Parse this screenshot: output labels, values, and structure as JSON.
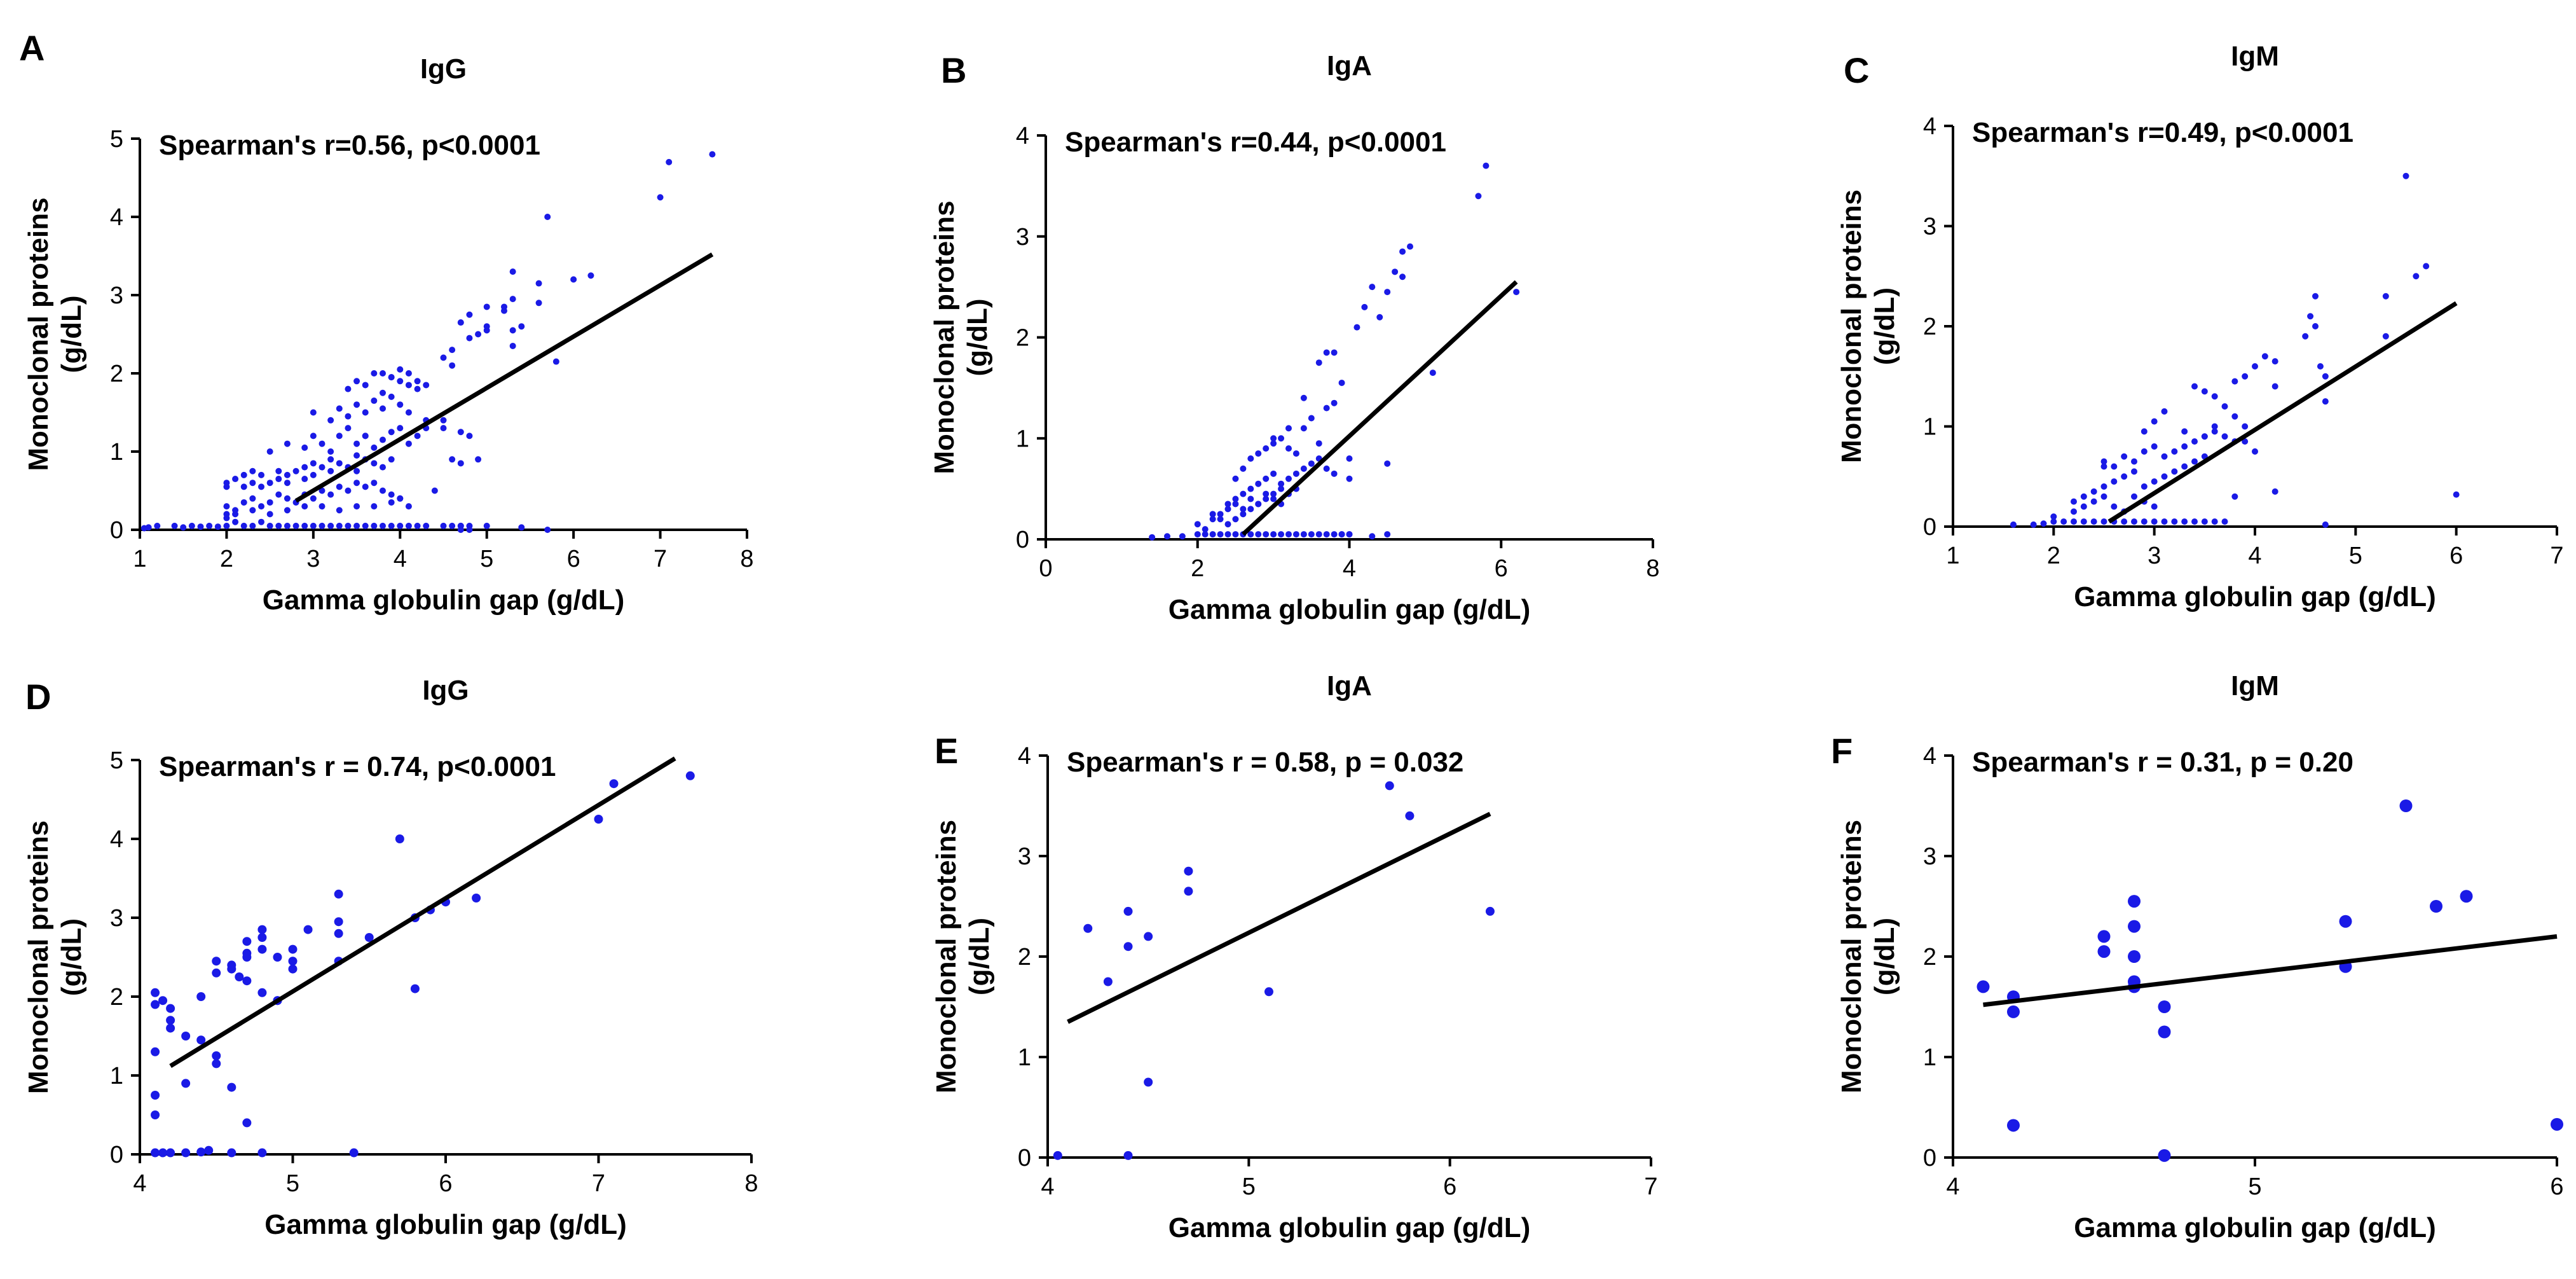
{
  "chart_data": [
    {
      "panel": "A",
      "type": "scatter",
      "title": "IgG",
      "annotation": "Spearman's  r=0.56, p<0.0001",
      "xlabel": "Gamma globulin gap (g/dL)",
      "ylabel": "Monoclonal proteins\n(g/dL)",
      "xlim": [
        1,
        8
      ],
      "ylim": [
        0,
        5
      ],
      "xticks": [
        1,
        2,
        3,
        4,
        5,
        6,
        7,
        8
      ],
      "yticks": [
        0,
        1,
        2,
        3,
        4,
        5
      ],
      "regression": [
        [
          2.8,
          0.37
        ],
        [
          7.6,
          3.52
        ]
      ],
      "x": [
        1.05,
        1.1,
        1.2,
        1.4,
        1.5,
        1.6,
        1.7,
        1.8,
        1.9,
        2.0,
        2.0,
        2.0,
        2.1,
        2.1,
        2.2,
        2.2,
        2.3,
        2.3,
        2.4,
        2.4,
        2.5,
        2.5,
        2.6,
        2.6,
        2.7,
        2.7,
        2.8,
        2.8,
        2.9,
        2.9,
        3.0,
        3.0,
        3.1,
        3.1,
        3.2,
        3.2,
        3.3,
        3.3,
        3.4,
        3.4,
        3.5,
        3.5,
        3.6,
        3.6,
        3.7,
        3.7,
        3.8,
        3.8,
        3.9,
        3.9,
        4.0,
        4.0,
        4.1,
        4.2,
        4.3,
        4.5,
        4.6,
        4.7,
        4.8,
        5.0,
        5.4,
        2.0,
        2.0,
        2.1,
        2.2,
        2.2,
        2.3,
        2.3,
        2.4,
        2.4,
        2.5,
        2.6,
        2.6,
        2.7,
        2.7,
        2.8,
        2.9,
        2.9,
        3.0,
        3.0,
        3.1,
        3.2,
        3.2,
        3.3,
        3.4,
        3.5,
        3.5,
        3.6,
        3.7,
        3.8,
        3.9,
        2.0,
        2.1,
        2.3,
        2.5,
        2.7,
        2.9,
        3.1,
        3.3,
        3.5,
        3.7,
        3.9,
        4.1,
        2.5,
        2.7,
        2.9,
        3.0,
        3.1,
        3.2,
        3.3,
        3.4,
        3.5,
        3.6,
        3.7,
        3.8,
        3.9,
        4.0,
        4.1,
        4.2,
        4.3,
        4.5,
        3.0,
        3.2,
        3.3,
        3.4,
        3.5,
        3.6,
        3.7,
        3.8,
        3.9,
        4.0,
        4.1,
        4.3,
        4.5,
        3.4,
        3.5,
        3.6,
        3.7,
        3.8,
        3.9,
        4.0,
        4.1,
        4.2,
        4.3,
        3.8,
        3.9,
        4.0,
        4.1,
        4.2,
        3.6,
        4.0,
        4.4,
        4.6,
        4.7,
        4.7,
        4.8,
        4.9,
        4.5,
        4.6,
        4.8,
        4.9,
        5.0,
        4.6,
        4.7,
        4.8,
        5.0,
        5.3,
        5.3,
        5.3,
        5.0,
        5.2,
        5.4,
        5.6,
        5.2,
        5.6,
        6.0,
        6.2,
        5.3,
        5.8,
        5.7,
        7.0,
        7.1,
        7.6,
        4.8,
        4.7,
        4.7,
        5.7
      ],
      "y": [
        0.02,
        0.03,
        0.05,
        0.05,
        0.03,
        0.05,
        0.04,
        0.05,
        0.04,
        0.05,
        0.3,
        0.15,
        0.1,
        0.25,
        0.05,
        0.35,
        0.05,
        0.4,
        0.1,
        0.3,
        0.05,
        0.35,
        0.05,
        0.45,
        0.05,
        0.4,
        0.05,
        0.35,
        0.05,
        0.45,
        0.05,
        0.4,
        0.05,
        0.5,
        0.05,
        0.45,
        0.05,
        0.55,
        0.05,
        0.5,
        0.05,
        0.6,
        0.05,
        0.55,
        0.05,
        0.6,
        0.05,
        0.5,
        0.05,
        0.45,
        0.05,
        0.4,
        0.05,
        0.05,
        0.05,
        0.05,
        0.05,
        0.05,
        0.05,
        0.05,
        0.03,
        0.55,
        0.6,
        0.65,
        0.55,
        0.7,
        0.6,
        0.75,
        0.55,
        0.7,
        0.6,
        0.65,
        0.75,
        0.6,
        0.7,
        0.75,
        0.65,
        0.8,
        0.7,
        0.85,
        0.8,
        0.75,
        0.9,
        0.85,
        0.8,
        0.75,
        0.95,
        0.9,
        0.85,
        0.8,
        0.9,
        0.2,
        0.2,
        0.25,
        0.2,
        0.25,
        0.3,
        0.3,
        0.25,
        0.3,
        0.3,
        0.35,
        0.3,
        1.0,
        1.1,
        1.05,
        1.2,
        1.1,
        1.0,
        1.2,
        1.3,
        1.1,
        1.2,
        1.05,
        1.15,
        1.25,
        1.3,
        1.1,
        1.2,
        1.3,
        1.4,
        1.5,
        1.4,
        1.55,
        1.45,
        1.6,
        1.5,
        1.65,
        1.55,
        1.7,
        1.6,
        1.5,
        1.4,
        1.3,
        1.8,
        1.9,
        1.85,
        2.0,
        1.75,
        1.95,
        1.9,
        2.0,
        1.8,
        1.85,
        2.0,
        1.95,
        2.05,
        1.85,
        1.9,
        1.2,
        0.4,
        0.5,
        0.9,
        0.85,
        1.25,
        1.2,
        0.9,
        2.2,
        2.3,
        2.45,
        2.5,
        2.55,
        2.1,
        2.65,
        2.75,
        2.85,
        2.95,
        2.35,
        3.3,
        2.6,
        2.8,
        2.6,
        3.15,
        2.85,
        2.9,
        3.2,
        3.25,
        2.55,
        2.15,
        4.0,
        4.25,
        4.7,
        4.8,
        0.0,
        0.05,
        0.0,
        0.0
      ]
    },
    {
      "panel": "B",
      "type": "scatter",
      "title": "IgA",
      "annotation": "Spearman's  r=0.44, p<0.0001",
      "xlabel": "Gamma globulin gap (g/dL)",
      "ylabel": "Monoclonal proteins\n(g/dL)",
      "xlim": [
        0,
        8
      ],
      "ylim": [
        0,
        4
      ],
      "xticks": [
        0,
        2,
        4,
        6,
        8
      ],
      "yticks": [
        0,
        1,
        2,
        3,
        4
      ],
      "regression": [
        [
          2.6,
          0.05
        ],
        [
          6.2,
          2.55
        ]
      ],
      "x": [
        1.4,
        1.6,
        1.8,
        2.0,
        2.1,
        2.2,
        2.2,
        2.3,
        2.3,
        2.4,
        2.4,
        2.5,
        2.5,
        2.6,
        2.6,
        2.7,
        2.7,
        2.8,
        2.8,
        2.9,
        2.9,
        3.0,
        3.0,
        3.1,
        3.1,
        3.2,
        3.2,
        3.3,
        3.4,
        3.5,
        3.6,
        3.7,
        3.8,
        3.9,
        4.0,
        4.3,
        2.0,
        2.1,
        2.2,
        2.3,
        2.4,
        2.4,
        2.5,
        2.5,
        2.6,
        2.6,
        2.7,
        2.7,
        2.8,
        2.8,
        2.9,
        2.9,
        3.0,
        3.0,
        3.1,
        3.1,
        3.2,
        3.3,
        3.3,
        3.4,
        3.5,
        3.6,
        3.7,
        3.8,
        4.0,
        2.5,
        2.6,
        2.7,
        2.8,
        2.9,
        3.0,
        3.1,
        3.2,
        3.3,
        3.4,
        3.5,
        3.6,
        3.7,
        3.8,
        4.0,
        3.0,
        3.2,
        3.4,
        3.6,
        3.7,
        3.8,
        3.9,
        4.1,
        4.2,
        4.3,
        4.4,
        4.5,
        4.5,
        4.6,
        4.7,
        4.7,
        4.8,
        5.1,
        5.7,
        5.8,
        6.2,
        3.9,
        4.0,
        4.5
      ],
      "y": [
        0.02,
        0.03,
        0.03,
        0.05,
        0.05,
        0.05,
        0.2,
        0.05,
        0.25,
        0.05,
        0.3,
        0.05,
        0.35,
        0.05,
        0.3,
        0.05,
        0.4,
        0.05,
        0.35,
        0.05,
        0.45,
        0.05,
        0.4,
        0.05,
        0.35,
        0.05,
        0.45,
        0.05,
        0.05,
        0.05,
        0.05,
        0.05,
        0.05,
        0.05,
        0.05,
        0.03,
        0.15,
        0.1,
        0.25,
        0.2,
        0.15,
        0.35,
        0.2,
        0.4,
        0.25,
        0.45,
        0.3,
        0.5,
        0.35,
        0.55,
        0.4,
        0.6,
        0.45,
        0.65,
        0.5,
        0.55,
        0.6,
        0.5,
        0.65,
        0.7,
        0.75,
        0.8,
        0.7,
        0.65,
        0.6,
        0.6,
        0.7,
        0.8,
        0.85,
        0.9,
        0.95,
        1.0,
        0.9,
        0.85,
        1.1,
        1.2,
        0.95,
        1.3,
        1.35,
        0.8,
        1.0,
        1.1,
        1.4,
        1.75,
        1.85,
        1.85,
        1.55,
        2.1,
        2.3,
        2.5,
        2.2,
        2.45,
        0.75,
        2.65,
        2.85,
        2.6,
        2.9,
        1.65,
        3.4,
        3.7,
        2.45,
        0.05,
        0.05,
        0.05
      ]
    },
    {
      "panel": "C",
      "type": "scatter",
      "title": "IgM",
      "annotation": "Spearman's  r=0.49, p<0.0001",
      "xlabel": "Gamma globulin gap (g/dL)",
      "ylabel": "Monoclonal proteins\n(g/dL)",
      "xlim": [
        1,
        7
      ],
      "ylim": [
        0,
        4
      ],
      "xticks": [
        1,
        2,
        3,
        4,
        5,
        6,
        7
      ],
      "yticks": [
        0,
        1,
        2,
        3,
        4
      ],
      "regression": [
        [
          2.55,
          0.05
        ],
        [
          6.0,
          2.23
        ]
      ],
      "x": [
        1.6,
        1.8,
        1.9,
        2.0,
        2.0,
        2.1,
        2.2,
        2.2,
        2.3,
        2.3,
        2.4,
        2.4,
        2.5,
        2.5,
        2.6,
        2.6,
        2.7,
        2.7,
        2.8,
        2.8,
        2.9,
        2.9,
        3.0,
        3.0,
        3.1,
        3.2,
        3.3,
        3.4,
        3.5,
        3.6,
        3.7,
        2.2,
        2.3,
        2.4,
        2.5,
        2.5,
        2.6,
        2.7,
        2.8,
        2.9,
        3.0,
        3.1,
        3.2,
        3.3,
        3.4,
        3.5,
        2.5,
        2.6,
        2.7,
        2.8,
        2.9,
        3.0,
        3.1,
        3.2,
        3.3,
        3.4,
        3.5,
        3.6,
        3.7,
        3.8,
        3.9,
        2.9,
        3.0,
        3.1,
        3.3,
        3.4,
        3.5,
        3.6,
        3.7,
        3.8,
        3.9,
        4.0,
        4.1,
        4.2,
        3.5,
        3.6,
        3.8,
        3.9,
        4.0,
        4.2,
        4.5,
        4.55,
        4.6,
        4.6,
        4.65,
        4.7,
        4.7,
        5.3,
        5.3,
        5.5,
        5.6,
        5.7,
        6.0,
        4.7,
        3.8,
        4.2
      ],
      "y": [
        0.02,
        0.02,
        0.03,
        0.05,
        0.1,
        0.05,
        0.05,
        0.15,
        0.05,
        0.2,
        0.05,
        0.25,
        0.05,
        0.3,
        0.05,
        0.2,
        0.05,
        0.15,
        0.05,
        0.3,
        0.05,
        0.25,
        0.05,
        0.2,
        0.05,
        0.05,
        0.05,
        0.05,
        0.05,
        0.05,
        0.05,
        0.25,
        0.3,
        0.35,
        0.4,
        0.6,
        0.45,
        0.5,
        0.55,
        0.4,
        0.45,
        0.5,
        0.55,
        0.6,
        0.65,
        0.7,
        0.65,
        0.6,
        0.7,
        0.65,
        0.75,
        0.8,
        0.7,
        0.75,
        0.8,
        0.85,
        0.9,
        0.95,
        0.9,
        0.85,
        1.0,
        0.95,
        1.05,
        1.15,
        0.95,
        1.4,
        1.35,
        1.3,
        1.2,
        1.45,
        1.5,
        1.6,
        1.7,
        1.65,
        0.9,
        1.0,
        1.1,
        0.85,
        0.75,
        0.35,
        1.9,
        2.1,
        2.0,
        2.3,
        1.6,
        1.5,
        1.25,
        1.9,
        2.3,
        3.5,
        2.5,
        2.6,
        0.32,
        0.02,
        0.3,
        1.4
      ]
    },
    {
      "panel": "D",
      "type": "scatter",
      "title": "IgG",
      "annotation": "Spearman's r = 0.74, p<0.0001",
      "xlabel": "Gamma globulin gap (g/dL)",
      "ylabel": "Monoclonal proteins\n(g/dL)",
      "xlim": [
        4,
        8
      ],
      "ylim": [
        0,
        5
      ],
      "xticks": [
        4,
        5,
        6,
        7,
        8
      ],
      "yticks": [
        0,
        1,
        2,
        3,
        4,
        5
      ],
      "regression": [
        [
          4.2,
          1.12
        ],
        [
          7.5,
          5.02
        ]
      ],
      "x": [
        4.1,
        4.1,
        4.1,
        4.1,
        4.1,
        4.15,
        4.2,
        4.2,
        4.2,
        4.3,
        4.3,
        4.4,
        4.4,
        4.5,
        4.5,
        4.5,
        4.5,
        4.6,
        4.6,
        4.6,
        4.65,
        4.7,
        4.7,
        4.7,
        4.7,
        4.7,
        4.8,
        4.8,
        4.8,
        4.8,
        4.9,
        4.9,
        5.0,
        5.0,
        5.0,
        5.1,
        5.3,
        5.3,
        5.3,
        5.3,
        5.4,
        5.5,
        5.7,
        5.8,
        5.8,
        5.9,
        6.0,
        6.2,
        7.0,
        7.1,
        7.6,
        4.1,
        4.15,
        4.2,
        4.3,
        4.4,
        4.45,
        4.8,
        4.6,
        4.9
      ],
      "y": [
        2.05,
        1.9,
        1.3,
        0.75,
        0.5,
        1.95,
        1.85,
        1.6,
        1.7,
        0.9,
        1.5,
        2.0,
        1.45,
        1.25,
        1.15,
        2.3,
        2.45,
        2.35,
        2.4,
        0.85,
        2.25,
        2.55,
        2.7,
        2.5,
        2.2,
        0.4,
        2.85,
        2.75,
        2.6,
        2.05,
        2.5,
        1.95,
        2.6,
        2.45,
        2.35,
        2.85,
        2.95,
        2.8,
        2.45,
        3.3,
        0.02,
        2.75,
        4.0,
        3.0,
        2.1,
        3.1,
        3.2,
        3.25,
        4.25,
        4.7,
        4.8,
        0.02,
        0.02,
        0.02,
        0.02,
        0.03,
        0.05,
        0.02,
        0.02,
        1.95
      ]
    },
    {
      "panel": "E",
      "type": "scatter",
      "title": "IgA",
      "annotation": "Spearman's r = 0.58, p = 0.032",
      "xlabel": "Gamma globulin gap (g/dL)",
      "ylabel": "Monoclonal proteins\n(g/dL)",
      "xlim": [
        4,
        7
      ],
      "ylim": [
        0,
        4
      ],
      "xticks": [
        4,
        5,
        6,
        7
      ],
      "yticks": [
        0,
        1,
        2,
        3,
        4
      ],
      "regression": [
        [
          4.1,
          1.35
        ],
        [
          6.2,
          3.42
        ]
      ],
      "x": [
        4.05,
        4.2,
        4.3,
        4.4,
        4.4,
        4.5,
        4.5,
        4.7,
        4.7,
        5.1,
        5.7,
        5.8,
        6.2,
        4.4
      ],
      "y": [
        0.02,
        2.28,
        1.75,
        2.45,
        2.1,
        2.2,
        0.75,
        2.85,
        2.65,
        1.65,
        3.7,
        3.4,
        2.45,
        0.02
      ]
    },
    {
      "panel": "F",
      "type": "scatter",
      "title": "IgM",
      "annotation": "Spearman's r = 0.31, p = 0.20",
      "xlabel": "Gamma globulin gap (g/dL)",
      "ylabel": "Monoclonal proteins\n(g/dL)",
      "xlim": [
        4,
        6
      ],
      "ylim": [
        0,
        4
      ],
      "xticks": [
        4,
        5,
        6
      ],
      "yticks": [
        0,
        1,
        2,
        3,
        4
      ],
      "regression": [
        [
          4.1,
          1.52
        ],
        [
          6.0,
          2.2
        ]
      ],
      "x": [
        4.1,
        4.2,
        4.2,
        4.2,
        4.5,
        4.5,
        4.6,
        4.6,
        4.6,
        4.6,
        4.6,
        4.7,
        4.7,
        4.7,
        5.3,
        5.3,
        5.5,
        5.6,
        5.7,
        6.0
      ],
      "y": [
        1.7,
        1.6,
        1.45,
        0.32,
        2.2,
        2.05,
        2.55,
        2.3,
        2.0,
        1.75,
        1.7,
        1.5,
        1.25,
        0.02,
        2.35,
        1.9,
        3.5,
        2.5,
        2.6,
        0.33
      ]
    }
  ]
}
